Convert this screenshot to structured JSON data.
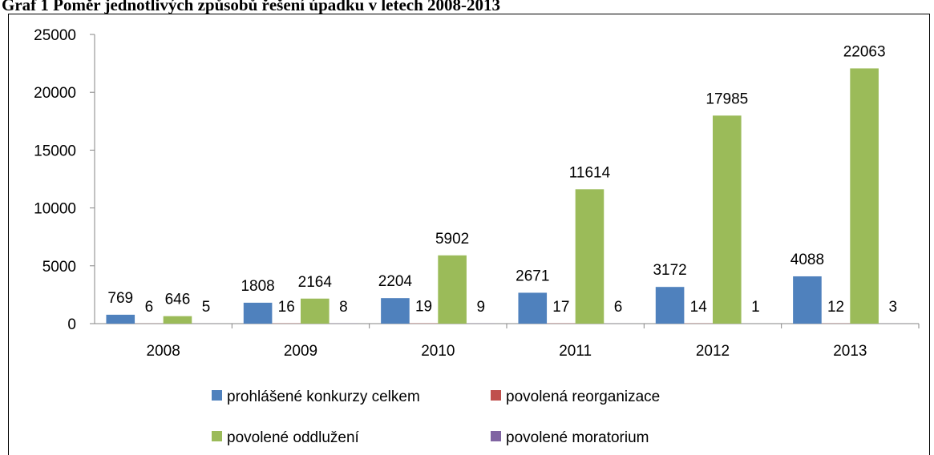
{
  "chart_data": {
    "type": "bar",
    "title": "Graf 1 Poměr jednotlivých způsobů řešení úpadku v letech 2008-2013",
    "categories": [
      "2008",
      "2009",
      "2010",
      "2011",
      "2012",
      "2013"
    ],
    "series": [
      {
        "name": "prohlášené konkurzy celkem",
        "color": "#4f81bd",
        "values": [
          769,
          1808,
          2204,
          2671,
          3172,
          4088
        ]
      },
      {
        "name": "povolená reorganizace",
        "color": "#c0504d",
        "values": [
          6,
          16,
          19,
          17,
          14,
          12
        ]
      },
      {
        "name": "povolené oddlužení",
        "color": "#9bbb59",
        "values": [
          646,
          2164,
          5902,
          11614,
          17985,
          22063
        ]
      },
      {
        "name": "povolené moratorium",
        "color": "#8064a2",
        "values": [
          5,
          8,
          9,
          6,
          1,
          3
        ]
      }
    ],
    "ylim": [
      0,
      25000
    ],
    "yticks": [
      0,
      5000,
      10000,
      15000,
      20000,
      25000
    ],
    "grid": false,
    "legend": "bottom"
  }
}
